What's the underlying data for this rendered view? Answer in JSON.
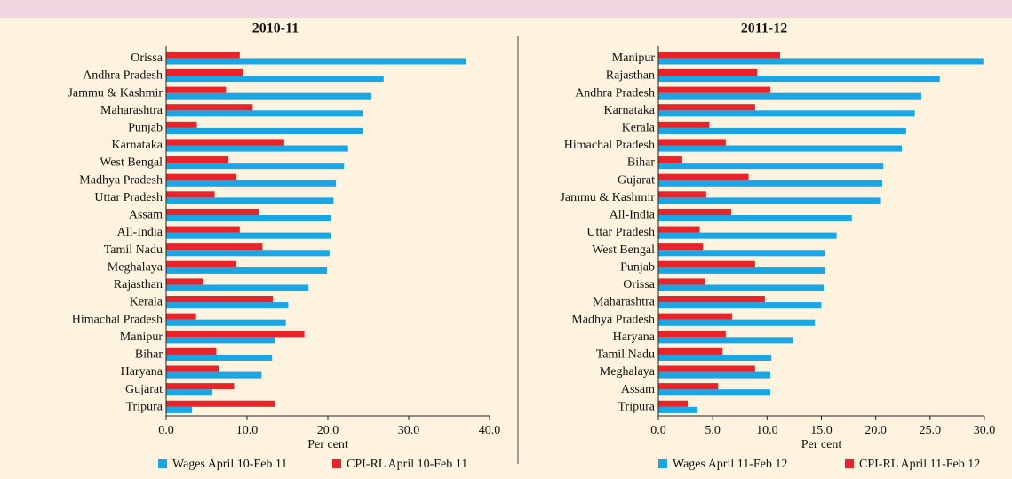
{
  "chart_data": [
    {
      "type": "bar",
      "orientation": "horizontal",
      "title": "2010-11",
      "xlabel": "Per cent",
      "categories": [
        "Orissa",
        "Andhra Pradesh",
        "Jammu & Kashmir",
        "Maharashtra",
        "Punjab",
        "Karnataka",
        "West Bengal",
        "Madhya Pradesh",
        "Uttar Pradesh",
        "Assam",
        "All-India",
        "Tamil Nadu",
        "Meghalaya",
        "Rajasthan",
        "Kerala",
        "Himachal Pradesh",
        "Manipur",
        "Bihar",
        "Haryana",
        "Gujarat",
        "Tripura"
      ],
      "series": [
        {
          "name": "Wages April 10-Feb 11",
          "color": "#1aa6e4",
          "values": [
            37.1,
            26.9,
            25.4,
            24.3,
            24.3,
            22.5,
            22.0,
            21.0,
            20.7,
            20.4,
            20.4,
            20.2,
            19.9,
            17.6,
            15.1,
            14.8,
            13.4,
            13.1,
            11.8,
            5.7,
            3.2
          ]
        },
        {
          "name": "CPI-RL April 10-Feb 11",
          "color": "#e8232a",
          "values": [
            9.1,
            9.5,
            7.4,
            10.7,
            3.8,
            14.6,
            7.7,
            8.7,
            6.0,
            11.5,
            9.1,
            11.9,
            8.7,
            4.6,
            13.2,
            3.7,
            17.1,
            6.2,
            6.5,
            8.4,
            13.5
          ]
        }
      ],
      "xlim": [
        0,
        40
      ],
      "xticks": [
        {
          "value": 0,
          "label": "0.0"
        },
        {
          "value": 10,
          "label": "10.0"
        },
        {
          "value": 20,
          "label": "20.0"
        },
        {
          "value": 30,
          "label": "30.0"
        },
        {
          "value": 40,
          "label": "40.0"
        }
      ]
    },
    {
      "type": "bar",
      "orientation": "horizontal",
      "title": "2011-12",
      "xlabel": "Per cent",
      "categories": [
        "Manipur",
        "Rajasthan",
        "Andhra Pradesh",
        "Karnataka",
        "Kerala",
        "Himachal Pradesh",
        "Bihar",
        "Gujarat",
        "Jammu & Kashmir",
        "All-India",
        "Uttar Pradesh",
        "West Bengal",
        "Punjab",
        "Orissa",
        "Maharashtra",
        "Madhya Pradesh",
        "Haryana",
        "Tamil Nadu",
        "Meghalaya",
        "Assam",
        "Tripura"
      ],
      "series": [
        {
          "name": "Wages April 11-Feb 12",
          "color": "#1aa6e4",
          "values": [
            29.9,
            25.9,
            24.2,
            23.6,
            22.8,
            22.4,
            20.7,
            20.6,
            20.4,
            17.8,
            16.4,
            15.3,
            15.3,
            15.2,
            15.0,
            14.4,
            12.4,
            10.4,
            10.3,
            10.3,
            3.6
          ]
        },
        {
          "name": "CPI-RL April 11-Feb 12",
          "color": "#e8232a",
          "values": [
            11.2,
            9.1,
            10.3,
            8.9,
            4.7,
            6.2,
            2.2,
            8.3,
            4.4,
            6.7,
            3.8,
            4.1,
            8.9,
            4.3,
            9.8,
            6.8,
            6.2,
            5.9,
            8.9,
            5.5,
            2.7
          ]
        }
      ],
      "xlim": [
        0,
        30
      ],
      "xticks": [
        {
          "value": 0,
          "label": "0.0"
        },
        {
          "value": 5,
          "label": "5.0"
        },
        {
          "value": 10,
          "label": "10.0"
        },
        {
          "value": 15,
          "label": "15.0"
        },
        {
          "value": 20,
          "label": "20.0"
        },
        {
          "value": 25,
          "label": "25.0"
        },
        {
          "value": 30,
          "label": "30.0"
        }
      ]
    }
  ]
}
